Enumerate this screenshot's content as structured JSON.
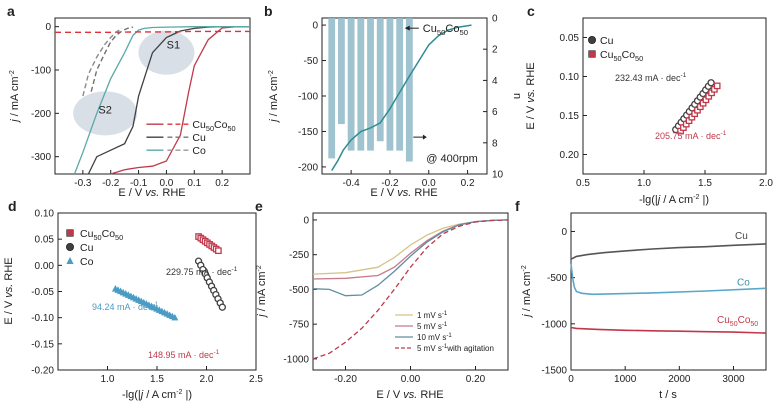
{
  "figure": {
    "colors": {
      "cu": "#404040",
      "co": "#5aa8a8",
      "cuco": "#c0394b",
      "dashed_red": "#e0303a",
      "n_bars": "#8fb8c8",
      "v1": "#d6c28a",
      "v5": "#c77a8a",
      "v10": "#5f8fa0",
      "agit": "#c0394b"
    }
  },
  "chart_data": [
    {
      "id": "a",
      "type": "line",
      "panel_label": "a",
      "xlabel_parts": [
        "E / V ",
        "vs.",
        " RHE"
      ],
      "ylabel_parts": [
        "j",
        " / mA cm",
        "-2"
      ],
      "xlim": [
        -0.4,
        0.3
      ],
      "ylim": [
        -340,
        20
      ],
      "xticks": [
        -0.3,
        -0.2,
        -0.1,
        0.0,
        0.1,
        0.2
      ],
      "xtick_labels": [
        "-0.3",
        "-0.2",
        "-0.1",
        "0.0",
        "0.1",
        "0.2"
      ],
      "yticks": [
        0,
        -100,
        -200,
        -300
      ],
      "ytick_labels": [
        "0",
        "-100",
        "-200",
        "-300"
      ],
      "annotations": [
        "S1",
        "S2"
      ],
      "legend": [
        {
          "prefix": "Cu",
          "sub1": "50",
          "mid": "Co",
          "sub2": "50"
        },
        {
          "prefix": "Cu",
          "sub1": "",
          "mid": "",
          "sub2": ""
        },
        {
          "prefix": "Co",
          "sub1": "",
          "mid": "",
          "sub2": ""
        }
      ],
      "series": [
        {
          "name": "Cu50Co50 solid",
          "color": "#c0394b",
          "dash": "",
          "x": [
            -0.2,
            -0.15,
            -0.1,
            -0.05,
            0.0,
            0.05,
            0.08,
            0.1,
            0.15,
            0.2,
            0.25,
            0.3
          ],
          "y": [
            -340,
            -330,
            -325,
            -322,
            -310,
            -250,
            -150,
            -90,
            -30,
            -3,
            0,
            0
          ]
        },
        {
          "name": "Cu solid",
          "color": "#404040",
          "dash": "",
          "x": [
            -0.28,
            -0.25,
            -0.2,
            -0.15,
            -0.12,
            -0.1,
            -0.05,
            0.0,
            0.05,
            0.1,
            0.15,
            0.2,
            0.3
          ],
          "y": [
            -340,
            -300,
            -285,
            -270,
            -230,
            -160,
            -60,
            -25,
            -10,
            -4,
            -1,
            0,
            0
          ]
        },
        {
          "name": "Co solid",
          "color": "#5aa8a8",
          "dash": "",
          "x": [
            -0.33,
            -0.3,
            -0.25,
            -0.2,
            -0.15,
            -0.12,
            -0.1,
            -0.08,
            -0.05,
            0.0,
            0.1,
            0.3
          ],
          "y": [
            -340,
            -290,
            -200,
            -120,
            -60,
            -20,
            -8,
            -4,
            -2,
            -1,
            0,
            0
          ]
        },
        {
          "name": "Cu50Co50 dashed",
          "color": "#e0303a",
          "dash": "6,4",
          "x": [
            -0.4,
            -0.3,
            -0.2,
            -0.1,
            0.0,
            0.1,
            0.2,
            0.3
          ],
          "y": [
            -13,
            -13,
            -13,
            -12,
            -12,
            -11,
            -11,
            -11
          ]
        },
        {
          "name": "Cu dashed",
          "color": "#707070",
          "dash": "5,3",
          "x": [
            -0.27,
            -0.25,
            -0.22,
            -0.2,
            -0.18,
            -0.16,
            -0.14,
            -0.12
          ],
          "y": [
            -150,
            -100,
            -60,
            -35,
            -20,
            -10,
            -4,
            -1
          ]
        },
        {
          "name": "Co dashed",
          "color": "#8a8a8a",
          "dash": "5,3",
          "x": [
            -0.3,
            -0.28,
            -0.25,
            -0.22,
            -0.2,
            -0.18,
            -0.16
          ],
          "y": [
            -160,
            -110,
            -70,
            -40,
            -25,
            -12,
            -4
          ]
        }
      ]
    },
    {
      "id": "b",
      "type": "line",
      "panel_label": "b",
      "xlabel_parts": [
        "E / V ",
        "vs.",
        " RHE"
      ],
      "ylabel_parts": [
        "j",
        " / mA cm",
        "-2"
      ],
      "y2label": "n",
      "xlim": [
        -0.55,
        0.3
      ],
      "ylim": [
        -210,
        10
      ],
      "y2lim": [
        0,
        10
      ],
      "xticks": [
        -0.4,
        -0.2,
        0.0,
        0.2
      ],
      "xtick_labels": [
        "-0.4",
        "-0.2",
        "0.0",
        "0.2"
      ],
      "yticks": [
        0,
        -50,
        -100,
        -150,
        -200
      ],
      "ytick_labels": [
        "0",
        "-50",
        "-100",
        "-150",
        "-200"
      ],
      "y2ticks": [
        0,
        2,
        4,
        6,
        8,
        10
      ],
      "y2tick_labels": [
        "0",
        "2",
        "4",
        "6",
        "8",
        "10"
      ],
      "bars": {
        "x": [
          -0.5,
          -0.45,
          -0.4,
          -0.35,
          -0.3,
          -0.25,
          -0.2,
          -0.15,
          -0.1
        ],
        "n": [
          9.0,
          6.8,
          8.5,
          8.5,
          8.5,
          7.9,
          8.5,
          8.5,
          9.2
        ],
        "width": 0.035
      },
      "series": [
        {
          "name": "Cu50Co50",
          "color": "#2e8d92",
          "dash": "",
          "x": [
            -0.5,
            -0.47,
            -0.44,
            -0.4,
            -0.35,
            -0.3,
            -0.25,
            -0.2,
            -0.15,
            -0.1,
            -0.05,
            0.0,
            0.05,
            0.1,
            0.15,
            0.2,
            0.22
          ],
          "y": [
            -205,
            -192,
            -176,
            -162,
            -150,
            -145,
            -138,
            -118,
            -95,
            -72,
            -50,
            -28,
            -15,
            -7,
            -3,
            -1,
            0
          ]
        }
      ],
      "label_parts": {
        "prefix": "Cu",
        "sub1": "50",
        "mid": "Co",
        "sub2": "50"
      },
      "annotation": "@ 400rpm"
    },
    {
      "id": "c",
      "type": "scatter",
      "panel_label": "c",
      "xlabel_parts": [
        "-lg(",
        "|",
        "j",
        " / A cm",
        "-2",
        " |)"
      ],
      "ylabel_parts": [
        "E / V ",
        "vs.",
        " RHE"
      ],
      "xlim": [
        0.5,
        2.0
      ],
      "ylim": [
        0.225,
        0.025
      ],
      "xticks": [
        0.5,
        1.0,
        1.5,
        2.0
      ],
      "xtick_labels": [
        "0.5",
        "1.0",
        "1.5",
        "2.0"
      ],
      "yticks": [
        0.05,
        0.1,
        0.15,
        0.2
      ],
      "ytick_labels": [
        "0.05",
        "0.10",
        "0.15",
        "0.20"
      ],
      "legend": [
        {
          "prefix": "Cu",
          "sub1": "",
          "mid": "",
          "sub2": ""
        },
        {
          "prefix": "Cu",
          "sub1": "50",
          "mid": "Co",
          "sub2": "50"
        }
      ],
      "series": [
        {
          "name": "Cu",
          "marker": "circle",
          "color": "#404040",
          "x_start": 1.26,
          "x_end": 1.55,
          "y_start": 0.168,
          "y_end": 0.108,
          "count": 14
        },
        {
          "name": "Cu50Co50",
          "marker": "square",
          "color": "#c0394b",
          "x_start": 1.3,
          "x_end": 1.6,
          "y_start": 0.17,
          "y_end": 0.112,
          "count": 14
        }
      ],
      "slope_labels": [
        "232.43 mA · dec",
        "205.75 mA · dec"
      ],
      "slope_exp": "-1"
    },
    {
      "id": "d",
      "type": "scatter",
      "panel_label": "d",
      "xlabel_parts": [
        "-lg(",
        "|",
        "j",
        " / A cm",
        "-2",
        " |)"
      ],
      "ylabel_parts": [
        "E / V ",
        "vs.",
        " RHE"
      ],
      "xlim": [
        0.5,
        2.5
      ],
      "ylim": [
        -0.2,
        0.1
      ],
      "xticks": [
        1.0,
        1.5,
        2.0,
        2.5
      ],
      "xtick_labels": [
        "1.0",
        "1.5",
        "2.0",
        "2.5"
      ],
      "yticks": [
        -0.2,
        -0.15,
        -0.1,
        -0.05,
        0.0,
        0.05,
        0.1
      ],
      "ytick_labels": [
        "-0.20",
        "-0.15",
        "-0.10",
        "-0.05",
        "0.00",
        "0.05",
        "0.10"
      ],
      "legend": [
        {
          "prefix": "Cu",
          "sub1": "50",
          "mid": "Co",
          "sub2": "50"
        },
        {
          "prefix": "Cu",
          "sub1": "",
          "mid": "",
          "sub2": ""
        },
        {
          "prefix": "Co",
          "sub1": "",
          "mid": "",
          "sub2": ""
        }
      ],
      "series": [
        {
          "name": "Cu50Co50",
          "marker": "square",
          "color": "#c0394b",
          "x_start": 1.92,
          "x_end": 2.12,
          "y_start": 0.055,
          "y_end": 0.028,
          "count": 10
        },
        {
          "name": "Cu",
          "marker": "circle",
          "color": "#404040",
          "x_start": 1.92,
          "x_end": 2.16,
          "y_start": 0.008,
          "y_end": -0.08,
          "count": 12
        },
        {
          "name": "Co",
          "marker": "triangle",
          "color": "#4a9cc4",
          "x_start": 1.08,
          "x_end": 1.68,
          "y_start": -0.045,
          "y_end": -0.1,
          "count": 24
        }
      ],
      "slope_labels": [
        "229.75 mA · dec",
        "94.24 mA · dec",
        "148.95 mA · dec"
      ],
      "slope_exp": "-1"
    },
    {
      "id": "e",
      "type": "line",
      "panel_label": "e",
      "xlabel_parts": [
        "E / V ",
        "vs.",
        " RHE"
      ],
      "ylabel_parts": [
        "j",
        " / mA cm",
        "-2"
      ],
      "xlim": [
        -0.3,
        0.3
      ],
      "ylim": [
        -1080,
        50
      ],
      "xticks": [
        -0.2,
        0.0,
        0.2
      ],
      "xtick_labels": [
        "-0.20",
        "0.00",
        "0.20"
      ],
      "yticks": [
        0,
        -250,
        -500,
        -750,
        -1000
      ],
      "ytick_labels": [
        "0",
        "-250",
        "-500",
        "-750",
        "-1000"
      ],
      "legend_labels": [
        "1 mV s",
        "5 mV s",
        "10 mV s",
        "5 mV s"
      ],
      "legend_suffix": "with agitation",
      "legend_exp": "-1",
      "series": [
        {
          "name": "1 mV s-1",
          "color": "#d6c28a",
          "dash": "",
          "x": [
            -0.3,
            -0.2,
            -0.1,
            -0.05,
            0.0,
            0.05,
            0.1,
            0.15,
            0.2,
            0.25,
            0.3
          ],
          "y": [
            -390,
            -380,
            -340,
            -270,
            -180,
            -110,
            -60,
            -30,
            -12,
            -4,
            0
          ]
        },
        {
          "name": "5 mV s-1",
          "color": "#c77a8a",
          "dash": "",
          "x": [
            -0.3,
            -0.2,
            -0.1,
            -0.05,
            0.0,
            0.05,
            0.1,
            0.15,
            0.2,
            0.25,
            0.3
          ],
          "y": [
            -425,
            -420,
            -400,
            -340,
            -240,
            -150,
            -80,
            -35,
            -12,
            -3,
            0
          ]
        },
        {
          "name": "10 mV s-1",
          "color": "#5f8fa0",
          "dash": "",
          "x": [
            -0.3,
            -0.25,
            -0.2,
            -0.15,
            -0.1,
            -0.05,
            0.0,
            0.05,
            0.1,
            0.15,
            0.2,
            0.25,
            0.3
          ],
          "y": [
            -495,
            -500,
            -545,
            -540,
            -470,
            -370,
            -260,
            -160,
            -85,
            -35,
            -12,
            -3,
            0
          ]
        },
        {
          "name": "5 mV s-1 with agitation",
          "color": "#c0394b",
          "dash": "5,3",
          "x": [
            -0.3,
            -0.25,
            -0.2,
            -0.15,
            -0.1,
            -0.05,
            0.0,
            0.05,
            0.1,
            0.15,
            0.2,
            0.25,
            0.3
          ],
          "y": [
            -1000,
            -960,
            -880,
            -780,
            -650,
            -500,
            -340,
            -200,
            -100,
            -45,
            -15,
            -4,
            0
          ]
        }
      ]
    },
    {
      "id": "f",
      "type": "line",
      "panel_label": "f",
      "xlabel": "t / s",
      "ylabel_parts": [
        "j",
        " / mA cm",
        "-2"
      ],
      "xlim": [
        0,
        3600
      ],
      "ylim": [
        -1500,
        200
      ],
      "xticks": [
        0,
        1000,
        2000,
        3000
      ],
      "xtick_labels": [
        "0",
        "1000",
        "2000",
        "3000"
      ],
      "yticks": [
        0,
        -500,
        -1000,
        -1500
      ],
      "ytick_labels": [
        "0",
        "-500",
        "-1000",
        "-1500"
      ],
      "series_labels": [
        {
          "prefix": "Cu",
          "sub1": "",
          "mid": "",
          "sub2": ""
        },
        {
          "prefix": "Co",
          "sub1": "",
          "mid": "",
          "sub2": ""
        },
        {
          "prefix": "Cu",
          "sub1": "50",
          "mid": "Co",
          "sub2": "50"
        }
      ],
      "series": [
        {
          "name": "Cu",
          "color": "#555555",
          "x": [
            0,
            100,
            300,
            600,
            1000,
            1500,
            2000,
            2500,
            3000,
            3600
          ],
          "y": [
            -300,
            -270,
            -250,
            -230,
            -210,
            -190,
            -175,
            -165,
            -150,
            -135
          ]
        },
        {
          "name": "Co",
          "color": "#5aa8c8",
          "x": [
            0,
            30,
            60,
            100,
            200,
            400,
            800,
            1500,
            2500,
            3600
          ],
          "y": [
            -350,
            -500,
            -600,
            -650,
            -670,
            -680,
            -675,
            -665,
            -645,
            -615
          ]
        },
        {
          "name": "Cu50Co50",
          "color": "#c0394b",
          "x": [
            0,
            100,
            500,
            1000,
            1500,
            2000,
            2500,
            3000,
            3600
          ],
          "y": [
            -1040,
            -1050,
            -1060,
            -1070,
            -1075,
            -1080,
            -1085,
            -1090,
            -1100
          ]
        }
      ]
    }
  ]
}
